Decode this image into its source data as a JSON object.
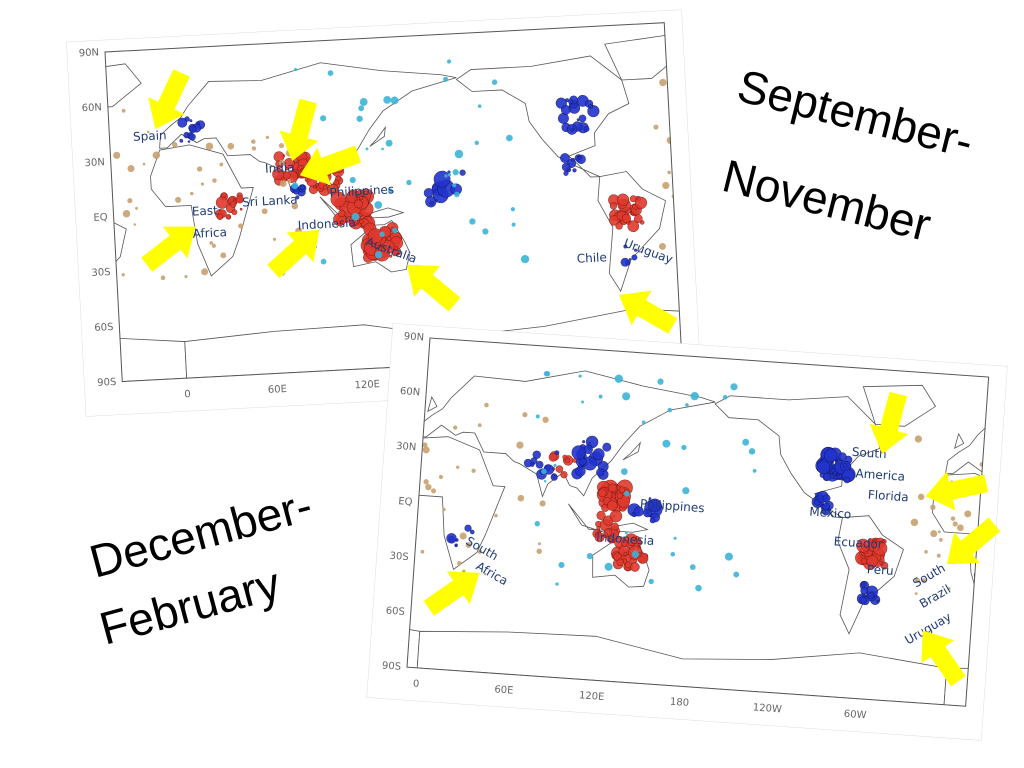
{
  "slide": {
    "titles": [
      {
        "lines": [
          "September-",
          "November"
        ]
      },
      {
        "lines": [
          "December-",
          "February"
        ]
      }
    ]
  },
  "maps": [
    {
      "lat_labels": [
        "90N",
        "60N",
        "30N",
        "EQ",
        "30S",
        "60S",
        "90S"
      ],
      "lon_labels": [
        "0",
        "60E",
        "120E"
      ],
      "places": [
        "Spain",
        "India",
        "Sri Lanka",
        "Philippines",
        "East",
        "Africa",
        "Indonesia",
        "Australia",
        "Chile",
        "Uruguay"
      ]
    },
    {
      "lat_labels": [
        "90N",
        "60N",
        "30N",
        "EQ",
        "30S",
        "60S",
        "90S"
      ],
      "lon_labels": [
        "0",
        "60E",
        "120E",
        "180",
        "120W",
        "60W"
      ],
      "places": [
        "South",
        "Africa",
        "Philippines",
        "Indonesia",
        "South",
        "America",
        "Florida",
        "Mexico",
        "Ecuador",
        "Peru",
        "South",
        "Brazil",
        "Uruguay"
      ]
    }
  ]
}
